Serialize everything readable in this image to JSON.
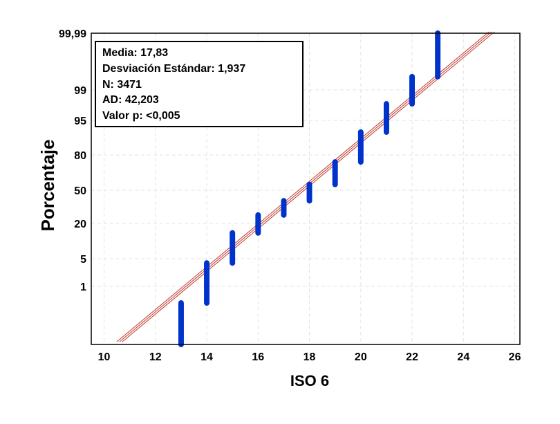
{
  "chart_data": {
    "type": "scatter",
    "title": "",
    "xlabel": "ISO 6",
    "ylabel": "Porcentaje",
    "xlim": [
      9.5,
      26.2
    ],
    "x_ticks": [
      10,
      12,
      14,
      16,
      18,
      20,
      22,
      24,
      26
    ],
    "y_scale": "normal-probability",
    "y_ticks": [
      {
        "label": "1",
        "value": 1
      },
      {
        "label": "5",
        "value": 5
      },
      {
        "label": "20",
        "value": 20
      },
      {
        "label": "50",
        "value": 50
      },
      {
        "label": "80",
        "value": 80
      },
      {
        "label": "95",
        "value": 95
      },
      {
        "label": "99",
        "value": 99
      },
      {
        "label": "99,99",
        "value": 99.99
      }
    ],
    "grid": true,
    "stats": [
      "Media: 17,83",
      "Desviación Estándar: 1,937",
      "N: 3471",
      "AD: 42,203",
      "Valor p: <0,005"
    ],
    "mean": 17.83,
    "std": 1.937,
    "series": [
      {
        "color": "#0033cc",
        "points": [
          {
            "x": 13,
            "pmin": 0.001,
            "pmax": 0.3
          },
          {
            "x": 14,
            "pmin": 0.3,
            "pmax": 4.0
          },
          {
            "x": 15,
            "pmin": 4.0,
            "pmax": 14.5
          },
          {
            "x": 16,
            "pmin": 14.5,
            "pmax": 26.5
          },
          {
            "x": 17,
            "pmin": 26.5,
            "pmax": 39.5
          },
          {
            "x": 18,
            "pmin": 39.5,
            "pmax": 55.5
          },
          {
            "x": 19,
            "pmin": 55.5,
            "pmax": 75.0
          },
          {
            "x": 20,
            "pmin": 75.0,
            "pmax": 91.5
          },
          {
            "x": 21,
            "pmin": 91.5,
            "pmax": 97.8
          },
          {
            "x": 22,
            "pmin": 97.8,
            "pmax": 99.6
          },
          {
            "x": 23,
            "pmin": 99.6,
            "pmax": 99.99
          }
        ]
      }
    ],
    "fit_line_color": "#c0392b"
  }
}
